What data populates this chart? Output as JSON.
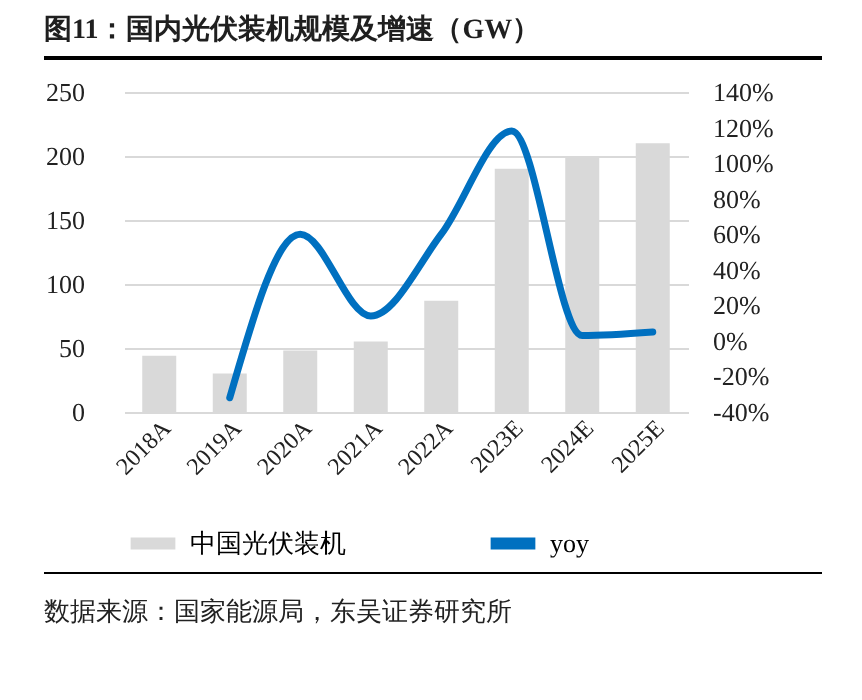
{
  "chart_data": {
    "type": "bar",
    "title": "图11：国内光伏装机规模及增速（GW）",
    "annotations": [
      "数据来源：国家能源局，东吴证券研究所"
    ],
    "categories": [
      "2018A",
      "2019A",
      "2020A",
      "2021A",
      "2022A",
      "2023E",
      "2024E",
      "2025E"
    ],
    "series": [
      {
        "name": "中国光伏装机",
        "color": "#d9d9d9",
        "values": [
          44,
          30,
          48,
          55,
          87,
          190,
          200,
          210
        ]
      },
      {
        "name": "yoy",
        "type": "line",
        "axis": "y2",
        "color": "#0070c0",
        "values": [
          null,
          -32,
          60,
          14,
          60,
          118,
          3,
          5
        ]
      }
    ],
    "ylim": [
      0,
      250
    ],
    "yticks": [
      0,
      50,
      100,
      150,
      200,
      250
    ],
    "y2lim": [
      -40,
      140
    ],
    "y2ticks": [
      {
        "value": -40,
        "label": "-40%"
      },
      {
        "value": -20,
        "label": "-20%"
      },
      {
        "value": 0,
        "label": "0%"
      },
      {
        "value": 20,
        "label": "20%"
      },
      {
        "value": 40,
        "label": "40%"
      },
      {
        "value": 60,
        "label": "60%"
      },
      {
        "value": 80,
        "label": "80%"
      },
      {
        "value": 100,
        "label": "100%"
      },
      {
        "value": 120,
        "label": "120%"
      },
      {
        "value": 140,
        "label": "140%"
      }
    ],
    "grid": "y",
    "legend": "bottom"
  }
}
